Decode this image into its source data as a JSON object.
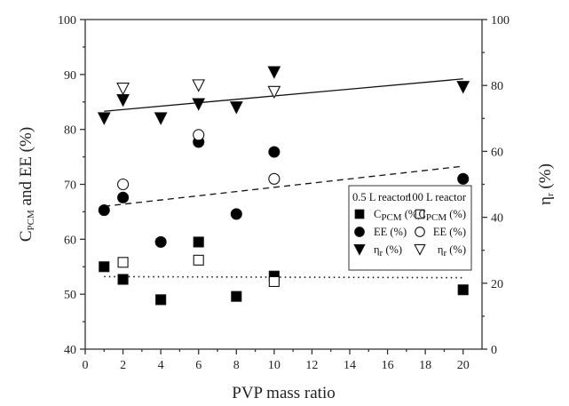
{
  "chart_data": {
    "type": "scatter",
    "x_axis": {
      "label": "PVP mass ratio",
      "range": [
        0,
        21
      ],
      "ticks": [
        0,
        2,
        4,
        6,
        8,
        10,
        12,
        14,
        16,
        18,
        20
      ]
    },
    "y_axis_left": {
      "label_main": "C",
      "label_sub": "PCM",
      "label_rest": " and EE (%)",
      "range": [
        40,
        100
      ],
      "ticks": [
        40,
        50,
        60,
        70,
        80,
        90,
        100
      ]
    },
    "y_axis_right": {
      "label_main": "η",
      "label_sub": "r",
      "label_rest": " (%)",
      "range": [
        0,
        100
      ],
      "ticks": [
        0,
        20,
        40,
        60,
        80,
        100
      ]
    },
    "legend": {
      "placement": "center-right",
      "group_05": "0.5 L reactor",
      "group_100": "100 L reactor",
      "entries": [
        {
          "id": "cpcm_05",
          "text_main": "C",
          "text_sub": "PCM",
          "text_rest": " (%)",
          "marker": "square",
          "fill": "#000000"
        },
        {
          "id": "cpcm_100",
          "text_main": "C",
          "text_sub": "PCM",
          "text_rest": " (%)",
          "marker": "square",
          "fill": "none"
        },
        {
          "id": "ee_05",
          "text_main": "EE (%)",
          "text_sub": "",
          "text_rest": "",
          "marker": "circle",
          "fill": "#000000"
        },
        {
          "id": "ee_100",
          "text_main": "EE (%)",
          "text_sub": "",
          "text_rest": "",
          "marker": "circle",
          "fill": "none"
        },
        {
          "id": "eta_05",
          "text_main": "η",
          "text_sub": "r",
          "text_rest": " (%)",
          "marker": "triangle-down",
          "fill": "#000000"
        },
        {
          "id": "eta_100",
          "text_main": "η",
          "text_sub": "r",
          "text_rest": " (%)",
          "marker": "triangle-down",
          "fill": "none"
        }
      ]
    },
    "series": [
      {
        "id": "cpcm_05",
        "axis": "left",
        "marker": "square",
        "fill": "#000000",
        "x": [
          1,
          2,
          4,
          6,
          8,
          10,
          20
        ],
        "y": [
          55,
          52.7,
          49,
          59.5,
          49.6,
          53.3,
          50.8
        ]
      },
      {
        "id": "cpcm_100",
        "axis": "left",
        "marker": "square",
        "fill": "none",
        "x": [
          2,
          6,
          10
        ],
        "y": [
          55.8,
          56.2,
          52.3
        ]
      },
      {
        "id": "ee_05",
        "axis": "left",
        "marker": "circle",
        "fill": "#000000",
        "x": [
          1,
          2,
          4,
          6,
          8,
          10,
          20
        ],
        "y": [
          65.3,
          67.6,
          59.5,
          77.7,
          64.6,
          75.9,
          71
        ]
      },
      {
        "id": "ee_100",
        "axis": "left",
        "marker": "circle",
        "fill": "none",
        "x": [
          2,
          6,
          10
        ],
        "y": [
          70,
          79,
          71
        ]
      },
      {
        "id": "eta_05",
        "axis": "right",
        "marker": "triangle-down",
        "fill": "#000000",
        "x": [
          1,
          2,
          4,
          6,
          8,
          10,
          20
        ],
        "y": [
          70,
          75.5,
          70,
          74.3,
          73.3,
          84,
          79.5
        ]
      },
      {
        "id": "eta_100",
        "axis": "right",
        "marker": "triangle-down",
        "fill": "none",
        "x": [
          2,
          6,
          10
        ],
        "y": [
          79,
          80,
          78
        ]
      }
    ],
    "trend_lines": [
      {
        "id": "trend-eta",
        "axis": "left",
        "style": "solid",
        "x": [
          1,
          20
        ],
        "y": [
          83.3,
          89.2
        ]
      },
      {
        "id": "trend-ee",
        "axis": "left",
        "style": "dashed",
        "x": [
          1,
          20
        ],
        "y": [
          66.0,
          73.3
        ]
      },
      {
        "id": "trend-cpcm",
        "axis": "left",
        "style": "dotted",
        "x": [
          1,
          20
        ],
        "y": [
          53.2,
          53.0
        ]
      }
    ],
    "grid": false
  }
}
